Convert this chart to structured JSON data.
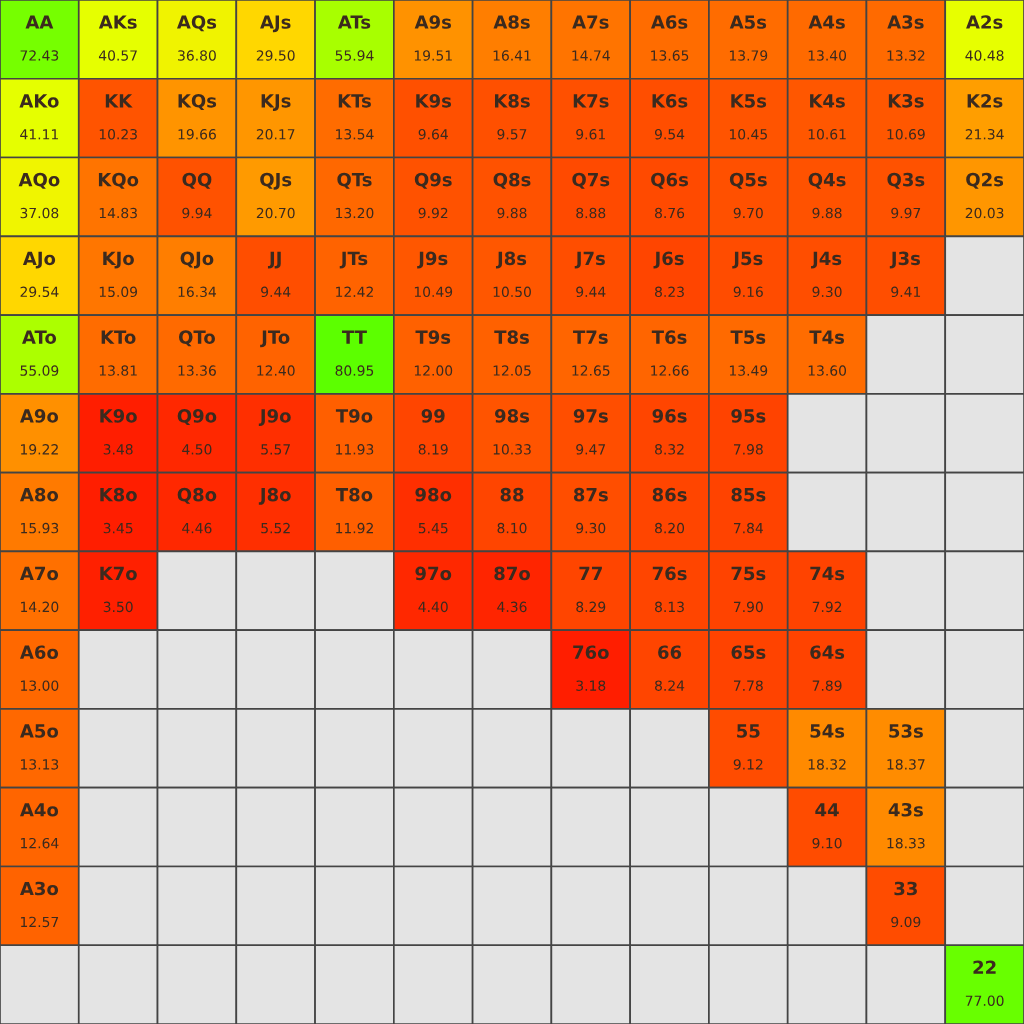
{
  "chart_data": {
    "type": "heatmap",
    "categories": [
      null,
      null,
      null,
      null,
      null,
      null,
      null,
      null,
      null,
      null,
      null,
      null,
      null
    ],
    "y_categories": [
      null,
      null,
      null,
      null,
      null,
      null,
      null,
      null,
      null,
      null,
      null,
      null,
      null
    ],
    "cells": [
      [
        72.43,
        40.57,
        36.8,
        29.5,
        55.94,
        19.51,
        16.41,
        14.74,
        13.65,
        13.79,
        13.4,
        13.32,
        40.48
      ],
      [
        41.11,
        10.23,
        19.66,
        20.17,
        13.54,
        9.64,
        9.57,
        9.61,
        9.54,
        10.45,
        10.61,
        10.69,
        21.34
      ],
      [
        37.08,
        14.83,
        9.94,
        20.7,
        13.2,
        9.92,
        9.88,
        8.88,
        8.76,
        9.7,
        9.88,
        9.97,
        20.03
      ],
      [
        29.54,
        15.09,
        16.34,
        9.44,
        12.42,
        10.49,
        10.5,
        9.44,
        8.23,
        9.16,
        9.3,
        9.41,
        null
      ],
      [
        55.09,
        13.81,
        13.36,
        12.4,
        80.95,
        12.0,
        12.05,
        12.65,
        12.66,
        13.49,
        13.6,
        null,
        null
      ],
      [
        19.22,
        3.48,
        4.5,
        5.57,
        11.93,
        8.19,
        10.33,
        9.47,
        8.32,
        7.98,
        null,
        null,
        null
      ],
      [
        15.93,
        3.45,
        4.46,
        5.52,
        11.92,
        5.45,
        8.1,
        9.3,
        8.2,
        7.84,
        null,
        null,
        null
      ],
      [
        14.2,
        3.5,
        null,
        null,
        null,
        4.4,
        4.36,
        8.29,
        8.13,
        7.9,
        7.92,
        null,
        null
      ],
      [
        13.0,
        null,
        null,
        null,
        null,
        null,
        null,
        3.18,
        8.24,
        7.78,
        7.89,
        null,
        null
      ],
      [
        13.13,
        null,
        null,
        null,
        null,
        null,
        null,
        null,
        null,
        9.12,
        18.32,
        18.37,
        null
      ],
      [
        12.64,
        null,
        null,
        null,
        null,
        null,
        null,
        null,
        null,
        null,
        9.1,
        18.33,
        null
      ],
      [
        12.57,
        null,
        null,
        null,
        null,
        null,
        null,
        null,
        null,
        null,
        null,
        9.09,
        null
      ],
      [
        null,
        null,
        null,
        null,
        null,
        null,
        null,
        null,
        null,
        null,
        null,
        null,
        77.0
      ]
    ],
    "cell_labels": [
      [
        "72.43",
        "40.57",
        "36.80",
        "29.50",
        "55.94",
        "19.51",
        "16.41",
        "14.74",
        "13.65",
        "13.79",
        "13.40",
        "13.32",
        "40.48"
      ],
      [
        "41.11",
        "10.23",
        "19.66",
        "20.17",
        "13.54",
        "9.64",
        "9.57",
        "9.61",
        "9.54",
        "10.45",
        "10.61",
        "10.69",
        "21.34"
      ],
      [
        "37.08",
        "14.83",
        "9.94",
        "20.70",
        "13.20",
        "9.92",
        "9.88",
        "8.88",
        "8.76",
        "9.70",
        "9.88",
        "9.97",
        "20.03"
      ],
      [
        "29.54",
        "15.09",
        "16.34",
        "9.44",
        "12.42",
        "10.49",
        "10.50",
        "9.44",
        "8.23",
        "9.16",
        "9.30",
        "9.41",
        null
      ],
      [
        "55.09",
        "13.81",
        "13.36",
        "12.40",
        "80.95",
        "12.00",
        "12.05",
        "12.65",
        "12.66",
        "13.49",
        "13.60",
        null,
        null
      ],
      [
        "19.22",
        "3.48",
        "4.50",
        "5.57",
        "11.93",
        "8.19",
        "10.33",
        "9.47",
        "8.32",
        "7.98",
        null,
        null,
        null
      ],
      [
        "15.93",
        "3.45",
        "4.46",
        "5.52",
        "11.92",
        "5.45",
        "8.10",
        "9.30",
        "8.20",
        "7.84",
        null,
        null,
        null
      ],
      [
        "14.20",
        "3.50",
        null,
        null,
        null,
        "4.40",
        "4.36",
        "8.29",
        "8.13",
        "7.90",
        "7.92",
        null,
        null
      ],
      [
        "13.00",
        null,
        null,
        null,
        null,
        null,
        null,
        "3.18",
        "8.24",
        "7.78",
        "7.89",
        null,
        null
      ],
      [
        "13.13",
        null,
        null,
        null,
        null,
        null,
        null,
        null,
        null,
        "9.12",
        "18.32",
        "18.37",
        null
      ],
      [
        "12.64",
        null,
        null,
        null,
        null,
        null,
        null,
        null,
        null,
        null,
        "9.10",
        "18.33",
        null
      ],
      [
        "12.57",
        null,
        null,
        null,
        null,
        null,
        null,
        null,
        null,
        null,
        null,
        "9.09",
        null
      ],
      [
        null,
        null,
        null,
        null,
        null,
        null,
        null,
        null,
        null,
        null,
        null,
        null,
        "77.00"
      ]
    ],
    "annotations": [
      "AA",
      "AKs",
      "AQs",
      "AJs",
      "ATs",
      "A9s",
      "A8s",
      "A7s",
      "A6s",
      "A5s",
      "A4s",
      "A3s",
      "A2s",
      "AKo",
      "KK",
      "KQs",
      "KJs",
      "KTs",
      "K9s",
      "K8s",
      "K7s",
      "K6s",
      "K5s",
      "K4s",
      "K3s",
      "K2s",
      "AQo",
      "KQo",
      "QQ",
      "QJs",
      "QTs",
      "Q9s",
      "Q8s",
      "Q7s",
      "Q6s",
      "Q5s",
      "Q4s",
      "Q3s",
      "Q2s",
      "AJo",
      "KJo",
      "QJo",
      "JJ",
      "JTs",
      "J9s",
      "J8s",
      "J7s",
      "J6s",
      "J5s",
      "J4s",
      "J3s",
      "ATo",
      "KTo",
      "QTo",
      "JTo",
      "TT",
      "T9s",
      "T8s",
      "T7s",
      "T6s",
      "T5s",
      "T4s",
      "A9o",
      "K9o",
      "Q9o",
      "J9o",
      "T9o",
      "99",
      "98s",
      "97s",
      "96s",
      "95s",
      "A8o",
      "K8o",
      "Q8o",
      "J8o",
      "T8o",
      "98o",
      "88",
      "87s",
      "86s",
      "85s",
      "A7o",
      "K7o",
      "97o",
      "87o",
      "77",
      "76s",
      "75s",
      "74s",
      "A6o",
      "76o",
      "66",
      "65s",
      "64s",
      "A5o",
      "55",
      "54s",
      "53s",
      "A4o",
      "44",
      "43s",
      "A3o",
      "33",
      "22"
    ]
  }
}
